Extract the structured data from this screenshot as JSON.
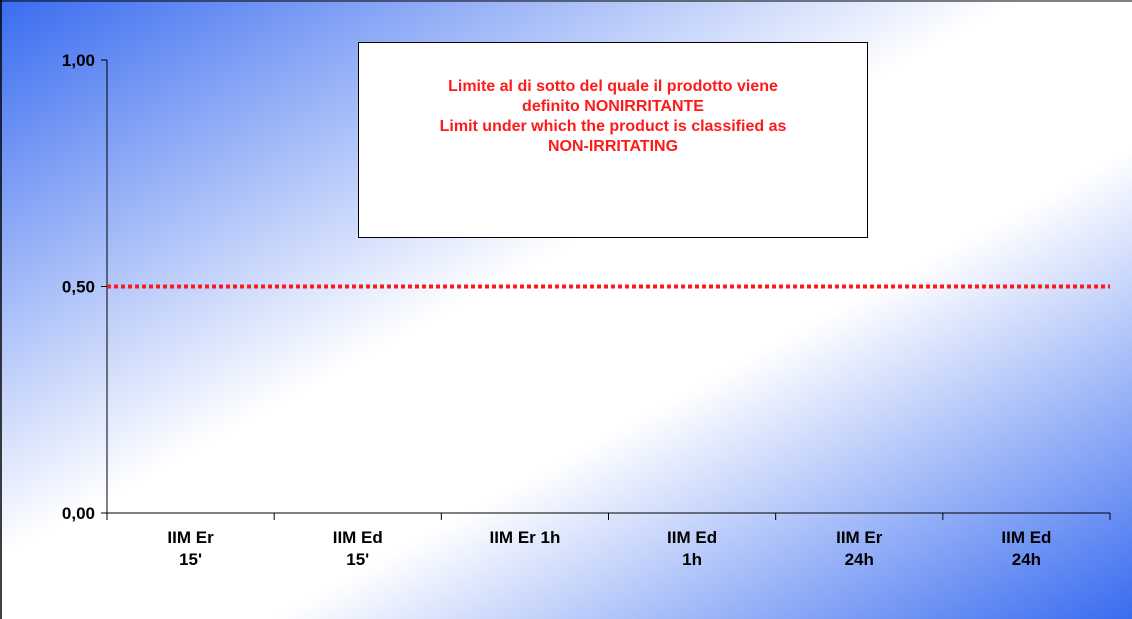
{
  "chart_data": {
    "type": "bar",
    "categories": [
      [
        "IIM Er",
        "15'"
      ],
      [
        "IIM Ed",
        "15'"
      ],
      [
        "IIM Er 1h"
      ],
      [
        "IIM Ed",
        "1h"
      ],
      [
        "IIM Er",
        "24h"
      ],
      [
        "IIM Ed",
        "24h"
      ]
    ],
    "series": [
      {
        "values": [
          0,
          0,
          0,
          0,
          0,
          0
        ]
      }
    ],
    "ylim": [
      0,
      1
    ],
    "yticks": [
      "0,00",
      "0,50",
      "1,00"
    ],
    "ytick_values": [
      0,
      0.5,
      1
    ],
    "threshold": {
      "value": 0.5,
      "color": "#ff1a1a",
      "style": "dotted"
    },
    "annotation": {
      "lines": [
        "Limite al di sotto del quale il prodotto viene",
        "definito NONIRRITANTE",
        "Limit under which the product is classified as",
        "NON-IRRITATING"
      ],
      "color": "#ff1a1a"
    },
    "background": {
      "gradient_edge": "#3a6cf0",
      "gradient_center": "#ffffff"
    },
    "grid": false,
    "legend": "none"
  }
}
